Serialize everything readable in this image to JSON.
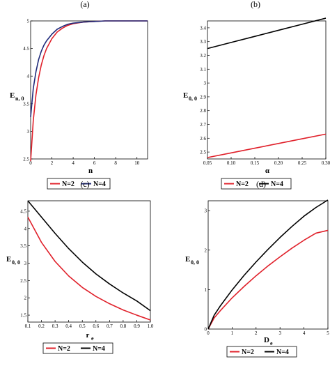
{
  "chart_data": [
    {
      "type": "line",
      "panel": "(a)",
      "title": "",
      "xlabel": "n",
      "ylabel_main": "E",
      "ylabel_sub": "n, 0",
      "xlim": [
        0,
        11
      ],
      "ylim": [
        2.5,
        5
      ],
      "xticks": [
        0,
        2,
        4,
        6,
        8,
        10
      ],
      "xtick_labels": [
        "0",
        "2",
        "4",
        "6",
        "8",
        "10"
      ],
      "yticks": [
        2.5,
        3,
        3.5,
        4,
        4.5,
        5
      ],
      "ytick_labels": [
        "2.5",
        "3",
        "3.5",
        "4",
        "4.5",
        "5"
      ],
      "x": [
        0,
        0.25,
        0.5,
        0.75,
        1,
        1.25,
        1.5,
        2,
        2.5,
        3,
        3.5,
        4,
        5,
        6,
        7,
        8,
        9,
        10,
        11
      ],
      "series": [
        {
          "name": "N=2",
          "color": "#e0202a",
          "values": [
            2.46,
            3.2,
            3.66,
            3.97,
            4.2,
            4.37,
            4.5,
            4.68,
            4.8,
            4.87,
            4.92,
            4.95,
            4.98,
            4.99,
            5.0,
            5.0,
            5.0,
            5.0,
            5.0
          ]
        },
        {
          "name": "N=4",
          "color": "#1f2a7a",
          "values": [
            3.26,
            3.78,
            4.08,
            4.3,
            4.45,
            4.56,
            4.64,
            4.76,
            4.85,
            4.9,
            4.94,
            4.96,
            4.98,
            4.99,
            5.0,
            5.0,
            5.0,
            5.0,
            5.0
          ]
        }
      ],
      "legend": [
        "N=2",
        "N=4"
      ],
      "legend_position": "bottom"
    },
    {
      "type": "line",
      "panel": "(b)",
      "title": "",
      "xlabel": "α",
      "ylabel_main": "E",
      "ylabel_sub": "0, 0",
      "xlim": [
        0.05,
        0.3
      ],
      "ylim": [
        2.45,
        3.45
      ],
      "xticks": [
        0.05,
        0.1,
        0.15,
        0.2,
        0.25,
        0.3
      ],
      "xtick_labels": [
        "0.05",
        "0.10",
        "0.15",
        "0.20",
        "0.25",
        "0.30"
      ],
      "yticks": [
        2.5,
        2.6,
        2.7,
        2.8,
        2.9,
        3,
        3.1,
        3.2,
        3.3,
        3.4
      ],
      "ytick_labels": [
        "2.5",
        "2.6",
        "2.7",
        "2.8",
        "2.9",
        "3",
        "3.1",
        "3.2",
        "3.3",
        "3.4"
      ],
      "x": [
        0.05,
        0.1,
        0.15,
        0.2,
        0.25,
        0.3
      ],
      "series": [
        {
          "name": "N=2",
          "color": "#e0202a",
          "values": [
            2.46,
            2.494,
            2.528,
            2.562,
            2.596,
            2.63
          ]
        },
        {
          "name": "N=4",
          "color": "#000000",
          "values": [
            3.25,
            3.294,
            3.338,
            3.382,
            3.426,
            3.47
          ]
        }
      ],
      "legend": [
        "N=2",
        "N=4"
      ],
      "legend_position": "bottom"
    },
    {
      "type": "line",
      "panel": "(c)",
      "title": "",
      "xlabel": "r",
      "xlabel_sub": "e",
      "ylabel_main": "E",
      "ylabel_sub": "0, 0",
      "xlim": [
        0.1,
        1
      ],
      "ylim": [
        1.3,
        4.8
      ],
      "xticks": [
        0.1,
        0.2,
        0.3,
        0.4,
        0.5,
        0.6,
        0.7,
        0.8,
        0.9,
        1
      ],
      "xtick_labels": [
        "0.1",
        "0.2",
        "0.3",
        "0.4",
        "0.5",
        "0.6",
        "0.7",
        "0.8",
        "0.9",
        "1.0"
      ],
      "yticks": [
        1.5,
        2,
        2.5,
        3,
        3.5,
        4,
        4.5
      ],
      "ytick_labels": [
        "1.5",
        "2",
        "2.5",
        "3",
        "3.5",
        "4",
        "4.5"
      ],
      "x": [
        0.1,
        0.2,
        0.3,
        0.4,
        0.5,
        0.6,
        0.7,
        0.8,
        0.9,
        1
      ],
      "series": [
        {
          "name": "N=2",
          "color": "#e0202a",
          "values": [
            4.33,
            3.6,
            3.05,
            2.63,
            2.3,
            2.04,
            1.83,
            1.65,
            1.5,
            1.36
          ]
        },
        {
          "name": "N=4",
          "color": "#000000",
          "values": [
            4.8,
            4.33,
            3.86,
            3.42,
            3.03,
            2.69,
            2.4,
            2.14,
            1.91,
            1.63
          ]
        }
      ],
      "legend": [
        "N=2",
        "N=4"
      ],
      "legend_position": "bottom"
    },
    {
      "type": "line",
      "panel": "(d)",
      "title": "",
      "xlabel": "D",
      "xlabel_sub": "e",
      "ylabel_main": "E",
      "ylabel_sub": "0, 0",
      "xlim": [
        0,
        5
      ],
      "ylim": [
        0,
        3.25
      ],
      "xticks": [
        0,
        1,
        2,
        3,
        4,
        5
      ],
      "xtick_labels": [
        "0",
        "1",
        "2",
        "3",
        "4",
        "5"
      ],
      "yticks": [
        0,
        1,
        2,
        3
      ],
      "ytick_labels": [
        "0",
        "1",
        "2",
        "3"
      ],
      "x": [
        0,
        0.25,
        0.5,
        1,
        1.5,
        2,
        2.5,
        3,
        3.5,
        4,
        4.5,
        5
      ],
      "series": [
        {
          "name": "N=2",
          "color": "#e0202a",
          "values": [
            0,
            0.28,
            0.46,
            0.79,
            1.08,
            1.35,
            1.6,
            1.83,
            2.05,
            2.25,
            2.43,
            2.5
          ]
        },
        {
          "name": "N=4",
          "color": "#000000",
          "values": [
            0,
            0.35,
            0.58,
            0.99,
            1.36,
            1.7,
            2.02,
            2.32,
            2.6,
            2.86,
            3.08,
            3.27
          ]
        }
      ],
      "legend": [
        "N=2",
        "N=4"
      ],
      "legend_position": "bottom"
    }
  ]
}
